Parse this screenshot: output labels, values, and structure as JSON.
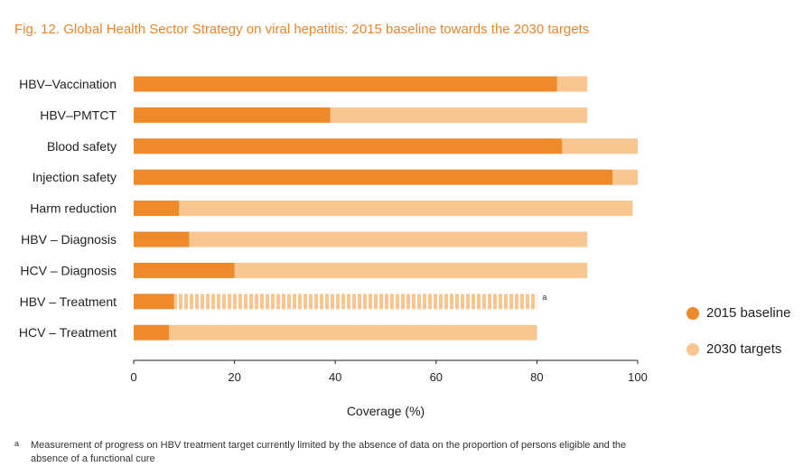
{
  "title": "Fig. 12. Global Health Sector Strategy on viral hepatitis: 2015 baseline towards the 2030 targets",
  "colors": {
    "baseline": "#ee8a2a",
    "target": "#f9c590",
    "title": "#e8852a"
  },
  "legend": {
    "baseline_label": "2015 baseline",
    "target_label": "2030 targets"
  },
  "chart_data": {
    "type": "bar",
    "orientation": "horizontal",
    "title": "Fig. 12. Global Health Sector Strategy on viral hepatitis: 2015 baseline towards the 2030 targets",
    "xlabel": "Coverage (%)",
    "ylabel": "",
    "xlim": [
      0,
      100
    ],
    "xticks": [
      0,
      20,
      40,
      60,
      80,
      100
    ],
    "categories": [
      "HBV–Vaccination",
      "HBV–PMTCT",
      "Blood safety",
      "Injection safety",
      "Harm reduction",
      "HBV – Diagnosis",
      "HCV – Diagnosis",
      "HBV – Treatment",
      "HCV – Treatment"
    ],
    "series": [
      {
        "name": "2015 baseline",
        "values": [
          84,
          39,
          85,
          95,
          9,
          11,
          20,
          8,
          7
        ]
      },
      {
        "name": "2030 targets",
        "values": [
          90,
          90,
          100,
          100,
          99,
          90,
          90,
          80,
          80
        ]
      }
    ],
    "annotations": [
      {
        "category": "HBV – Treatment",
        "text": "a",
        "style": "target bar striped"
      }
    ],
    "legend_position": "right",
    "grid": false
  },
  "footnote": {
    "mark": "a",
    "text": "Measurement of progress on HBV treatment target currently limited by the absence of data on the proportion of persons eligible and the absence of a functional cure"
  }
}
